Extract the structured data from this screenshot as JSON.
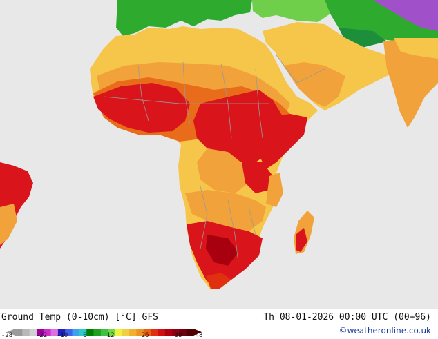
{
  "map": {
    "regions": [
      "Africa",
      "Arabian Peninsula",
      "South America (east tip)",
      "India",
      "Madagascar",
      "Europe (south)"
    ],
    "colors": {
      "sea": "#e8e8e8",
      "cold_green": "#2eab2e",
      "yellow": "#f6c64a",
      "orange": "#f2a23a",
      "hot_orange": "#e86c1a",
      "red": "#d9151b",
      "dark_red": "#a8000e",
      "violet": "#a050c8",
      "border": "#999999"
    }
  },
  "footer": {
    "title": "Ground Temp (0-10cm) [°C] GFS",
    "datetime": "Th 08-01-2026 00:00 UTC (00+96)",
    "credit": "©weatheronline.co.uk"
  },
  "colorbar": {
    "ticks": [
      "-28",
      "-22",
      "-10",
      "0",
      "12",
      "26",
      "38",
      "48"
    ],
    "swatches": [
      "#9a9a9a",
      "#b8b8b8",
      "#d0d0d0",
      "#a000a0",
      "#c830c8",
      "#e070e0",
      "#2020c0",
      "#4060f0",
      "#40a0f0",
      "#30c8c8",
      "#008000",
      "#20a020",
      "#40c040",
      "#70d840",
      "#f0f040",
      "#f0d040",
      "#f0b030",
      "#f09020",
      "#e86010",
      "#e03010",
      "#d01010",
      "#b00010",
      "#900010",
      "#700010",
      "#500000"
    ]
  }
}
